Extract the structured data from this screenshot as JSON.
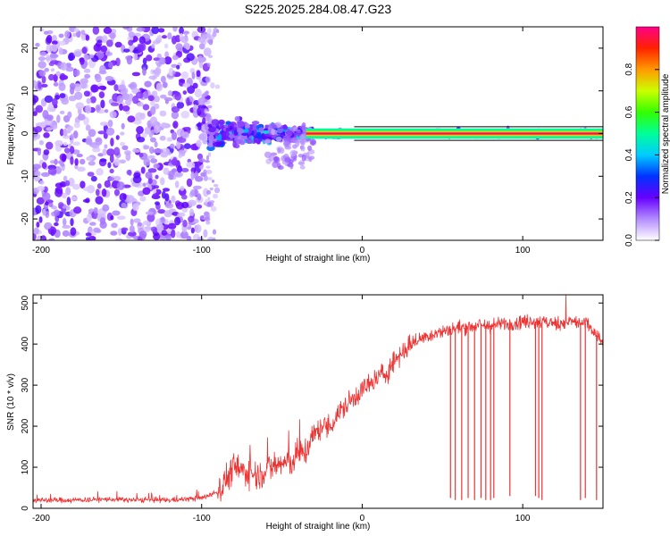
{
  "title": "S225.2025.284.08.47.G23",
  "chart_data": [
    {
      "type": "heatmap",
      "xlabel": "Height of straight line (km)",
      "ylabel": "Frequency (Hz)",
      "xlim": [
        -205,
        150
      ],
      "ylim": [
        -25,
        25
      ],
      "xticks": [
        -200,
        -100,
        0,
        100
      ],
      "yticks": [
        -20,
        -10,
        0,
        10,
        20
      ],
      "grid": false,
      "colorbar": {
        "label": "Normalized spectral amplitude",
        "range": [
          0,
          1
        ],
        "ticks": [
          0.0,
          0.2,
          0.4,
          0.6,
          0.8
        ]
      },
      "regions": [
        {
          "x_range": [
            -205,
            -95
          ],
          "freq_spread_hz": 25,
          "amplitude": "0.0-0.25",
          "character": "scattered noise"
        },
        {
          "x_range": [
            -95,
            -30
          ],
          "freq_spread_hz": 5,
          "amplitude": "0.1-0.45",
          "character": "broadening signal"
        },
        {
          "x_range": [
            -30,
            150
          ],
          "freq_spread_hz": 1,
          "amplitude": "0.8-1.0",
          "character": "narrow carrier at 0 Hz"
        }
      ]
    },
    {
      "type": "line",
      "xlabel": "Height of straight line (km)",
      "ylabel": "SNR (10 * v/v)",
      "xlim": [
        -205,
        150
      ],
      "ylim": [
        0,
        520
      ],
      "xticks": [
        -200,
        -100,
        0,
        100
      ],
      "yticks": [
        0,
        100,
        200,
        300,
        400,
        500
      ],
      "grid": false,
      "series": [
        {
          "color": "#ee3333",
          "x": [
            -205,
            -180,
            -160,
            -140,
            -120,
            -100,
            -90,
            -85,
            -80,
            -75,
            -70,
            -65,
            -60,
            -55,
            -50,
            -45,
            -40,
            -35,
            -30,
            -25,
            -20,
            -15,
            -10,
            -5,
            0,
            5,
            10,
            15,
            20,
            25,
            30,
            40,
            50,
            60,
            70,
            80,
            90,
            100,
            110,
            120,
            130,
            140,
            150
          ],
          "values": [
            20,
            20,
            22,
            20,
            20,
            25,
            40,
            70,
            100,
            90,
            90,
            80,
            95,
            100,
            110,
            110,
            130,
            140,
            180,
            200,
            200,
            230,
            250,
            270,
            290,
            300,
            320,
            330,
            360,
            380,
            400,
            420,
            430,
            440,
            445,
            445,
            450,
            455,
            455,
            450,
            455,
            450,
            400
          ]
        }
      ],
      "dropouts": [
        {
          "x": 55,
          "min": 25
        },
        {
          "x": 58,
          "min": 20
        },
        {
          "x": 62,
          "min": 20
        },
        {
          "x": 66,
          "min": 25
        },
        {
          "x": 70,
          "min": 20
        },
        {
          "x": 74,
          "min": 25
        },
        {
          "x": 77,
          "min": 20
        },
        {
          "x": 80,
          "min": 20
        },
        {
          "x": 82,
          "min": 25
        },
        {
          "x": 92,
          "min": 30
        },
        {
          "x": 108,
          "min": 30
        },
        {
          "x": 110,
          "min": 25
        },
        {
          "x": 112,
          "min": 20
        },
        {
          "x": 136,
          "min": 20
        },
        {
          "x": 139,
          "min": 25
        },
        {
          "x": 146,
          "min": 20
        }
      ]
    }
  ]
}
